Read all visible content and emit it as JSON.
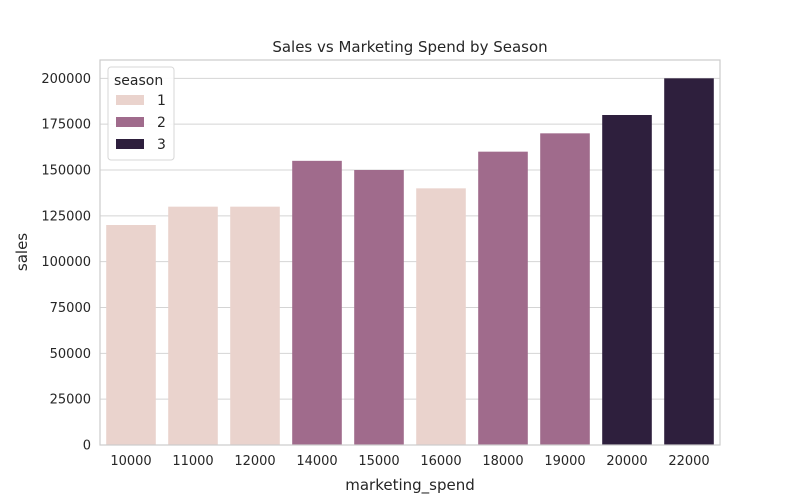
{
  "chart_data": {
    "type": "bar",
    "title": "Sales vs Marketing Spend by Season",
    "xlabel": "marketing_spend",
    "ylabel": "sales",
    "categories": [
      "10000",
      "11000",
      "12000",
      "14000",
      "15000",
      "16000",
      "18000",
      "19000",
      "20000",
      "22000"
    ],
    "values": [
      120000,
      130000,
      130000,
      155000,
      150000,
      140000,
      160000,
      170000,
      180000,
      200000
    ],
    "season": [
      "1",
      "1",
      "1",
      "2",
      "2",
      "1",
      "2",
      "2",
      "3",
      "3"
    ],
    "ylim": [
      0,
      210000
    ],
    "yticks": [
      0,
      25000,
      50000,
      75000,
      100000,
      125000,
      150000,
      175000,
      200000
    ],
    "ytick_labels": [
      "0",
      "25000",
      "50000",
      "75000",
      "100000",
      "125000",
      "150000",
      "175000",
      "200000"
    ],
    "grid": true,
    "legend": {
      "title": "season",
      "placement": "top-left",
      "entries": [
        {
          "label": "1",
          "color": "#ead3cd"
        },
        {
          "label": "2",
          "color": "#a06b8c"
        },
        {
          "label": "3",
          "color": "#2e1f3d"
        }
      ]
    },
    "colors": {
      "1": "#ead3cd",
      "2": "#a06b8c",
      "3": "#2e1f3d",
      "grid": "#d4d4d4",
      "axes_edge": "#cccccc"
    }
  }
}
